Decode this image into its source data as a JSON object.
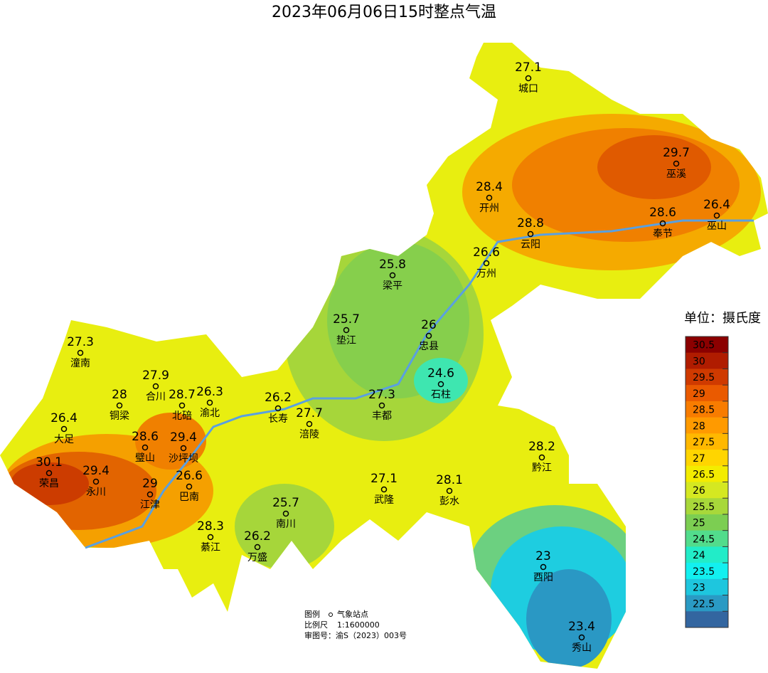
{
  "title": "2023年06月06日15时整点气温",
  "stations": [
    {
      "name": "城口",
      "value": 27.1
    },
    {
      "name": "巫溪",
      "value": 29.7
    },
    {
      "name": "开州",
      "value": 28.4
    },
    {
      "name": "巫山",
      "value": 26.4
    },
    {
      "name": "云阳",
      "value": 28.8
    },
    {
      "name": "奉节",
      "value": 28.6
    },
    {
      "name": "万州",
      "value": 26.6
    },
    {
      "name": "梁平",
      "value": 25.8
    },
    {
      "name": "垫江",
      "value": 25.7
    },
    {
      "name": "忠县",
      "value": 26
    },
    {
      "name": "石柱",
      "value": 24.6
    },
    {
      "name": "潼南",
      "value": 27.3
    },
    {
      "name": "合川",
      "value": 27.9
    },
    {
      "name": "铜梁",
      "value": 28
    },
    {
      "name": "北碚",
      "value": 28.7
    },
    {
      "name": "渝北",
      "value": 26.3
    },
    {
      "name": "长寿",
      "value": 26.2
    },
    {
      "name": "涪陵",
      "value": 27.7
    },
    {
      "name": "丰都",
      "value": 27.3
    },
    {
      "name": "大足",
      "value": 26.4
    },
    {
      "name": "璧山",
      "value": 28.6
    },
    {
      "name": "沙坪坝",
      "value": 29.4
    },
    {
      "name": "荣昌",
      "value": 30.1
    },
    {
      "name": "永川",
      "value": 29.4
    },
    {
      "name": "江津",
      "value": 29
    },
    {
      "name": "巴南",
      "value": 26.6
    },
    {
      "name": "武隆",
      "value": 27.1
    },
    {
      "name": "彭水",
      "value": 28.1
    },
    {
      "name": "黔江",
      "value": 28.2
    },
    {
      "name": "南川",
      "value": 25.7
    },
    {
      "name": "綦江",
      "value": 28.3
    },
    {
      "name": "万盛",
      "value": 26.2
    },
    {
      "name": "酉阳",
      "value": 23
    },
    {
      "name": "秀山",
      "value": 23.4
    }
  ],
  "legend": {
    "title": "单位：摄氏度",
    "levels": [
      30.5,
      30,
      29.5,
      29,
      28.5,
      28,
      27.5,
      27,
      26.5,
      26,
      25.5,
      25,
      24.5,
      24,
      23.5,
      23,
      22.5
    ],
    "colors": [
      "#8b0000",
      "#b01c00",
      "#cf3a00",
      "#ea5a00",
      "#f87c00",
      "#ff9a00",
      "#ffb800",
      "#ffd500",
      "#f3ec00",
      "#d5e821",
      "#a8d83a",
      "#7cce52",
      "#52dc8c",
      "#22ecc8",
      "#12f0f0",
      "#1ec6de",
      "#2a9ac4",
      "#3366a0"
    ]
  },
  "notes": {
    "legend_label": "图例",
    "station_label": "气象站点",
    "scale_label": "比例尺",
    "scale": "1:1600000",
    "approval": "审图号：渝S（2023）003号"
  }
}
